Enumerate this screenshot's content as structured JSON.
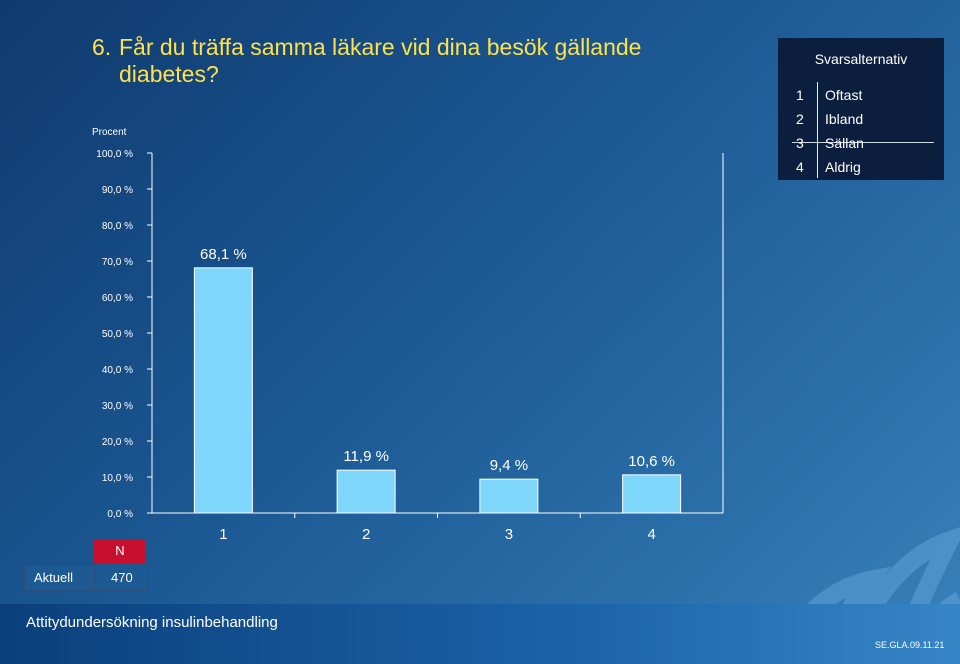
{
  "slide": {
    "number": "6.",
    "title_line1": "Får du träffa samma läkare vid dina besök gällande",
    "title_line2": "diabetes?"
  },
  "legend": {
    "title": "Svarsalternativ",
    "items": [
      {
        "idx": "1",
        "label": "Oftast"
      },
      {
        "idx": "2",
        "label": "Ibland"
      },
      {
        "idx": "3",
        "label": "Sällan"
      },
      {
        "idx": "4",
        "label": "Aldrig"
      }
    ]
  },
  "n_table": {
    "header": "N",
    "row_label": "Aktuell",
    "row_value": "470"
  },
  "footer": {
    "left": "Attitydundersökning insulinbehandling",
    "right": "SE.GLA.09.11.21"
  },
  "colors": {
    "bar_fill": "#7fd6fb",
    "title": "#ffe24a",
    "n_header": "#c8102e"
  },
  "chart_data": {
    "type": "bar",
    "ylabel": "Procent",
    "categories": [
      "1",
      "2",
      "3",
      "4"
    ],
    "values": [
      68.1,
      11.9,
      9.4,
      10.6
    ],
    "value_labels": [
      "68,1 %",
      "11,9 %",
      "9,4 %",
      "10,6 %"
    ],
    "ylim": [
      0,
      100
    ],
    "yticks": [
      0,
      10,
      20,
      30,
      40,
      50,
      60,
      70,
      80,
      90,
      100
    ],
    "ytick_labels": [
      "0,0 %",
      "10,0 %",
      "20,0 %",
      "30,0 %",
      "40,0 %",
      "50,0 %",
      "60,0 %",
      "70,0 %",
      "80,0 %",
      "90,0 %",
      "100,0 %"
    ],
    "grid": false
  }
}
